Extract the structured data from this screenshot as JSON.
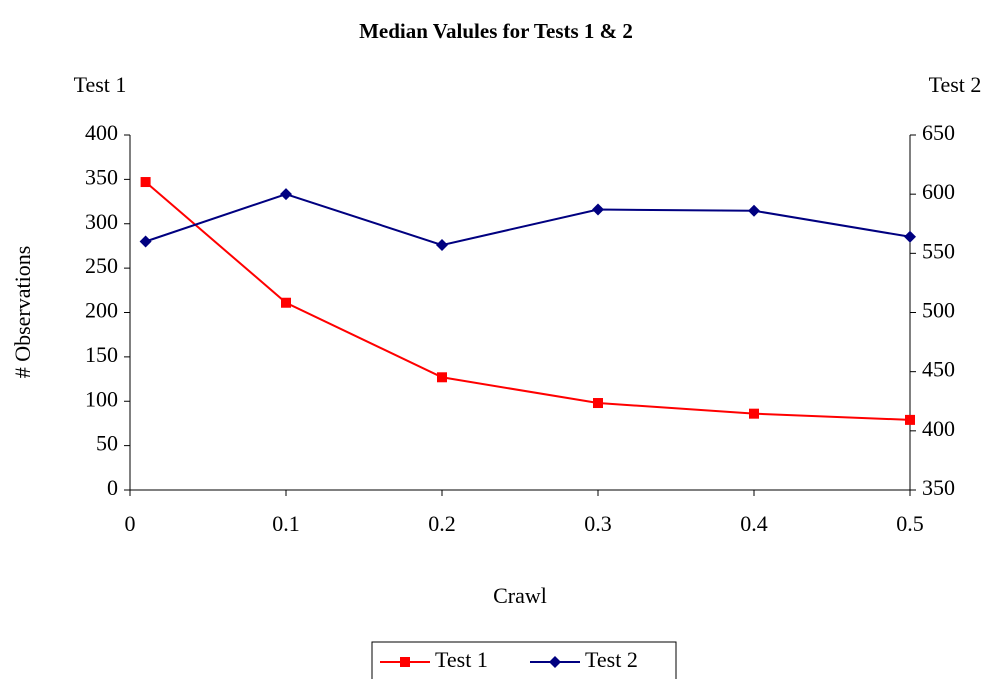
{
  "chart_data": {
    "type": "line",
    "title": "Median Valules for Tests 1 & 2",
    "x_label": "Crawl",
    "y_label": "# Observations",
    "y_axis_title": "Test 1",
    "y2_axis_title": "Test 2",
    "x": [
      0.01,
      0.1,
      0.2,
      0.3,
      0.4,
      0.5
    ],
    "xlim": [
      0,
      0.5
    ],
    "xticks": [
      0,
      0.1,
      0.2,
      0.3,
      0.4,
      0.5
    ],
    "ylim": [
      0,
      400
    ],
    "yticks": [
      0,
      50,
      100,
      150,
      200,
      250,
      300,
      350,
      400
    ],
    "y2lim": [
      350,
      650
    ],
    "y2ticks": [
      350,
      400,
      450,
      500,
      550,
      600,
      650
    ],
    "grid": false,
    "legend": "bottom",
    "series": [
      {
        "name": "Test 1",
        "color": "#ff0000",
        "marker": "square",
        "values": [
          347,
          211,
          127,
          98,
          86,
          79
        ]
      },
      {
        "name": "Test 2",
        "color": "#000080",
        "marker": "diamond",
        "axis": "y2",
        "values": [
          560,
          600,
          557,
          587,
          586,
          564
        ]
      }
    ]
  }
}
